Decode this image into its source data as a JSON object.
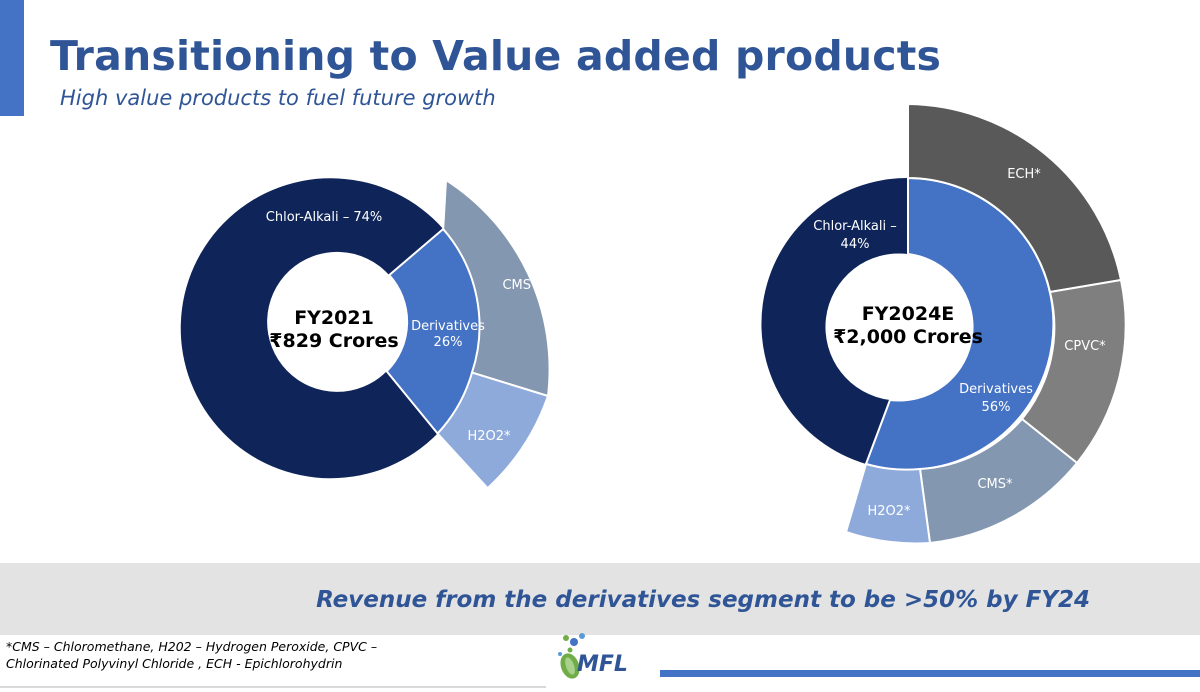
{
  "header": {
    "title": "Transitioning to Value added products",
    "subtitle": "High value products to fuel future growth"
  },
  "chart_data": [
    {
      "type": "pie",
      "center_title": "FY2021",
      "center_value": "₹829 Crores",
      "inner_ring": [
        {
          "label": "Chlor-Alkali – 74%",
          "value": 74,
          "color": "#0f2559"
        },
        {
          "label": "Derivatives 26%",
          "value": 26,
          "color": "#4472c4"
        }
      ],
      "outer_ring": [
        {
          "label": "CMS*",
          "parent": "Derivatives",
          "value": 18,
          "color": "#8497b0"
        },
        {
          "label": "H2O2*",
          "parent": "Derivatives",
          "value": 8,
          "color": "#8eaadb"
        }
      ]
    },
    {
      "type": "pie",
      "center_title": "FY2024E",
      "center_value": "₹2,000 Crores",
      "inner_ring": [
        {
          "label": "Chlor-Alkali – 44%",
          "value": 44,
          "color": "#0f2559"
        },
        {
          "label": "Derivatives 56%",
          "value": 56,
          "color": "#4472c4"
        }
      ],
      "outer_ring": [
        {
          "label": "ECH*",
          "parent": "Derivatives",
          "value": 20,
          "color": "#595959"
        },
        {
          "label": "CPVC*",
          "parent": "Derivatives",
          "value": 15,
          "color": "#7f7f7f"
        },
        {
          "label": "CMS*",
          "parent": "Derivatives",
          "value": 14,
          "color": "#8497b0"
        },
        {
          "label": "H2O2*",
          "parent": "Derivatives",
          "value": 7,
          "color": "#8eaadb"
        }
      ]
    }
  ],
  "banner": {
    "text": "Revenue from the derivatives segment to be >50% by FY24"
  },
  "footnote": {
    "line1": "*CMS – Chloromethane, H202 – Hydrogen Peroxide, CPVC –",
    "line2": "Chlorinated Polyvinyl Chloride , ECH - Epichlorohydrin"
  },
  "logo": {
    "text": "MFL"
  },
  "colors": {
    "accent": "#4472c4",
    "title": "#2f5597",
    "banner_bg": "#e3e3e3"
  }
}
